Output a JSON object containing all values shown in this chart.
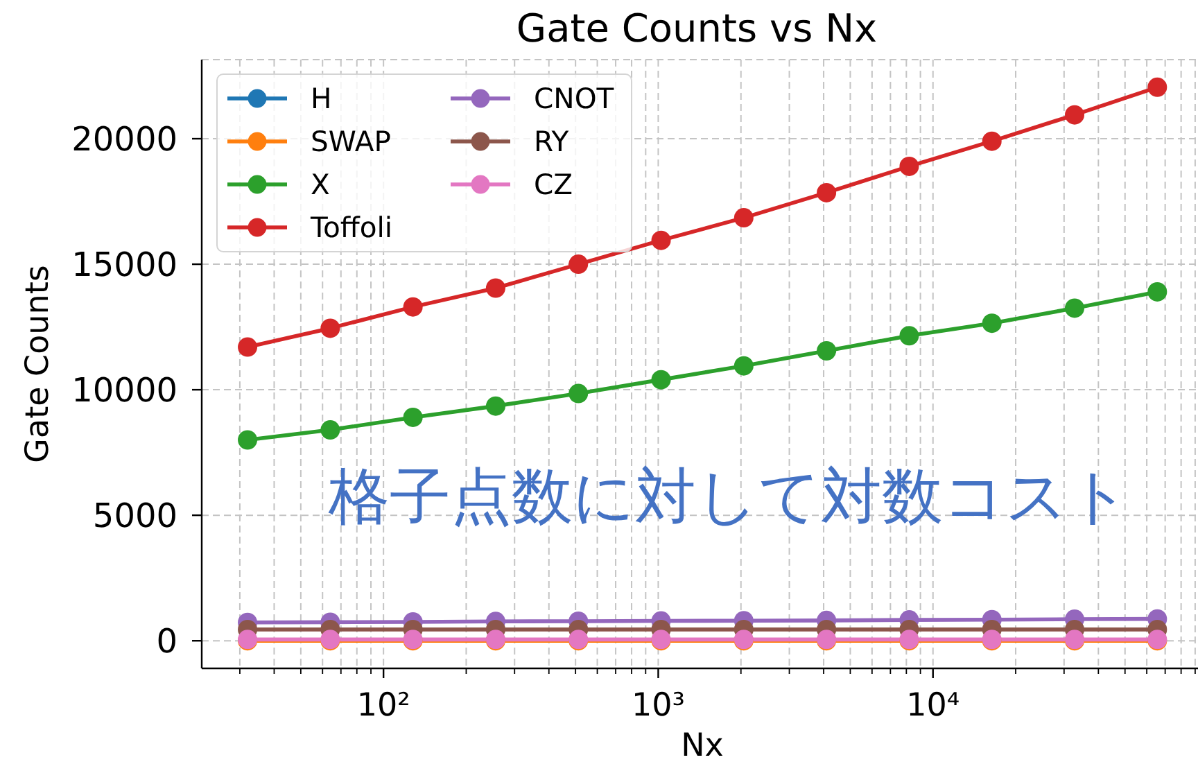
{
  "chart_data": {
    "type": "line",
    "title": "Gate Counts vs Nx",
    "xlabel": "Nx",
    "ylabel": "Gate Counts",
    "annotations": [
      "格子点数に対して対数コスト"
    ],
    "x": [
      32,
      64,
      128,
      256,
      512,
      1024,
      2048,
      4096,
      8192,
      16384,
      32768,
      65536
    ],
    "series": [
      {
        "name": "H",
        "color": "#1f77b4",
        "values": [
          null,
          null,
          null,
          null,
          null,
          null,
          null,
          null,
          null,
          null,
          null,
          null
        ]
      },
      {
        "name": "SWAP",
        "color": "#ff7f0e",
        "values": [
          0,
          0,
          0,
          0,
          0,
          0,
          0,
          0,
          0,
          0,
          0,
          0
        ]
      },
      {
        "name": "X",
        "color": "#2ca02c",
        "values": [
          8000,
          8400,
          8900,
          9350,
          9850,
          10400,
          10950,
          11550,
          12150,
          12650,
          13250,
          13900
        ]
      },
      {
        "name": "Toffoli",
        "color": "#d62728",
        "values": [
          11700,
          12450,
          13300,
          14050,
          15000,
          15950,
          16850,
          17850,
          18900,
          19900,
          20950,
          22050
        ]
      },
      {
        "name": "CNOT",
        "color": "#9467bd",
        "values": [
          730,
          740,
          750,
          770,
          780,
          790,
          800,
          810,
          830,
          840,
          860,
          870
        ]
      },
      {
        "name": "RY",
        "color": "#8c564b",
        "values": [
          450,
          450,
          450,
          450,
          450,
          450,
          450,
          450,
          450,
          450,
          450,
          450
        ]
      },
      {
        "name": "CZ",
        "color": "#e377c2",
        "values": [
          50,
          50,
          50,
          50,
          50,
          50,
          50,
          50,
          50,
          50,
          50,
          50
        ]
      }
    ],
    "log": "x",
    "xlim": [
      21.8,
      96000
    ],
    "xticks": [
      {
        "value": 30,
        "label": null
      },
      {
        "value": 40,
        "label": null
      },
      {
        "value": 50,
        "label": null
      },
      {
        "value": 60,
        "label": null
      },
      {
        "value": 70,
        "label": null
      },
      {
        "value": 80,
        "label": null
      },
      {
        "value": 90,
        "label": null
      },
      {
        "value": 100,
        "label": "10²"
      },
      {
        "value": 200,
        "label": null
      },
      {
        "value": 300,
        "label": null
      },
      {
        "value": 400,
        "label": null
      },
      {
        "value": 500,
        "label": null
      },
      {
        "value": 600,
        "label": null
      },
      {
        "value": 700,
        "label": null
      },
      {
        "value": 800,
        "label": null
      },
      {
        "value": 900,
        "label": null
      },
      {
        "value": 1000,
        "label": "10³"
      },
      {
        "value": 2000,
        "label": null
      },
      {
        "value": 3000,
        "label": null
      },
      {
        "value": 4000,
        "label": null
      },
      {
        "value": 5000,
        "label": null
      },
      {
        "value": 6000,
        "label": null
      },
      {
        "value": 7000,
        "label": null
      },
      {
        "value": 8000,
        "label": null
      },
      {
        "value": 9000,
        "label": null
      },
      {
        "value": 10000,
        "label": "10⁴"
      },
      {
        "value": 20000,
        "label": null
      },
      {
        "value": 30000,
        "label": null
      },
      {
        "value": 40000,
        "label": null
      },
      {
        "value": 50000,
        "label": null
      },
      {
        "value": 60000,
        "label": null
      },
      {
        "value": 70000,
        "label": null
      },
      {
        "value": 80000,
        "label": null
      },
      {
        "value": 90000,
        "label": null
      }
    ],
    "ylim": [
      -1100,
      23150
    ],
    "yticks": [
      0,
      5000,
      10000,
      15000,
      20000
    ],
    "grid": true,
    "legend": "top left",
    "marker": "circle",
    "line_style": "solid"
  }
}
